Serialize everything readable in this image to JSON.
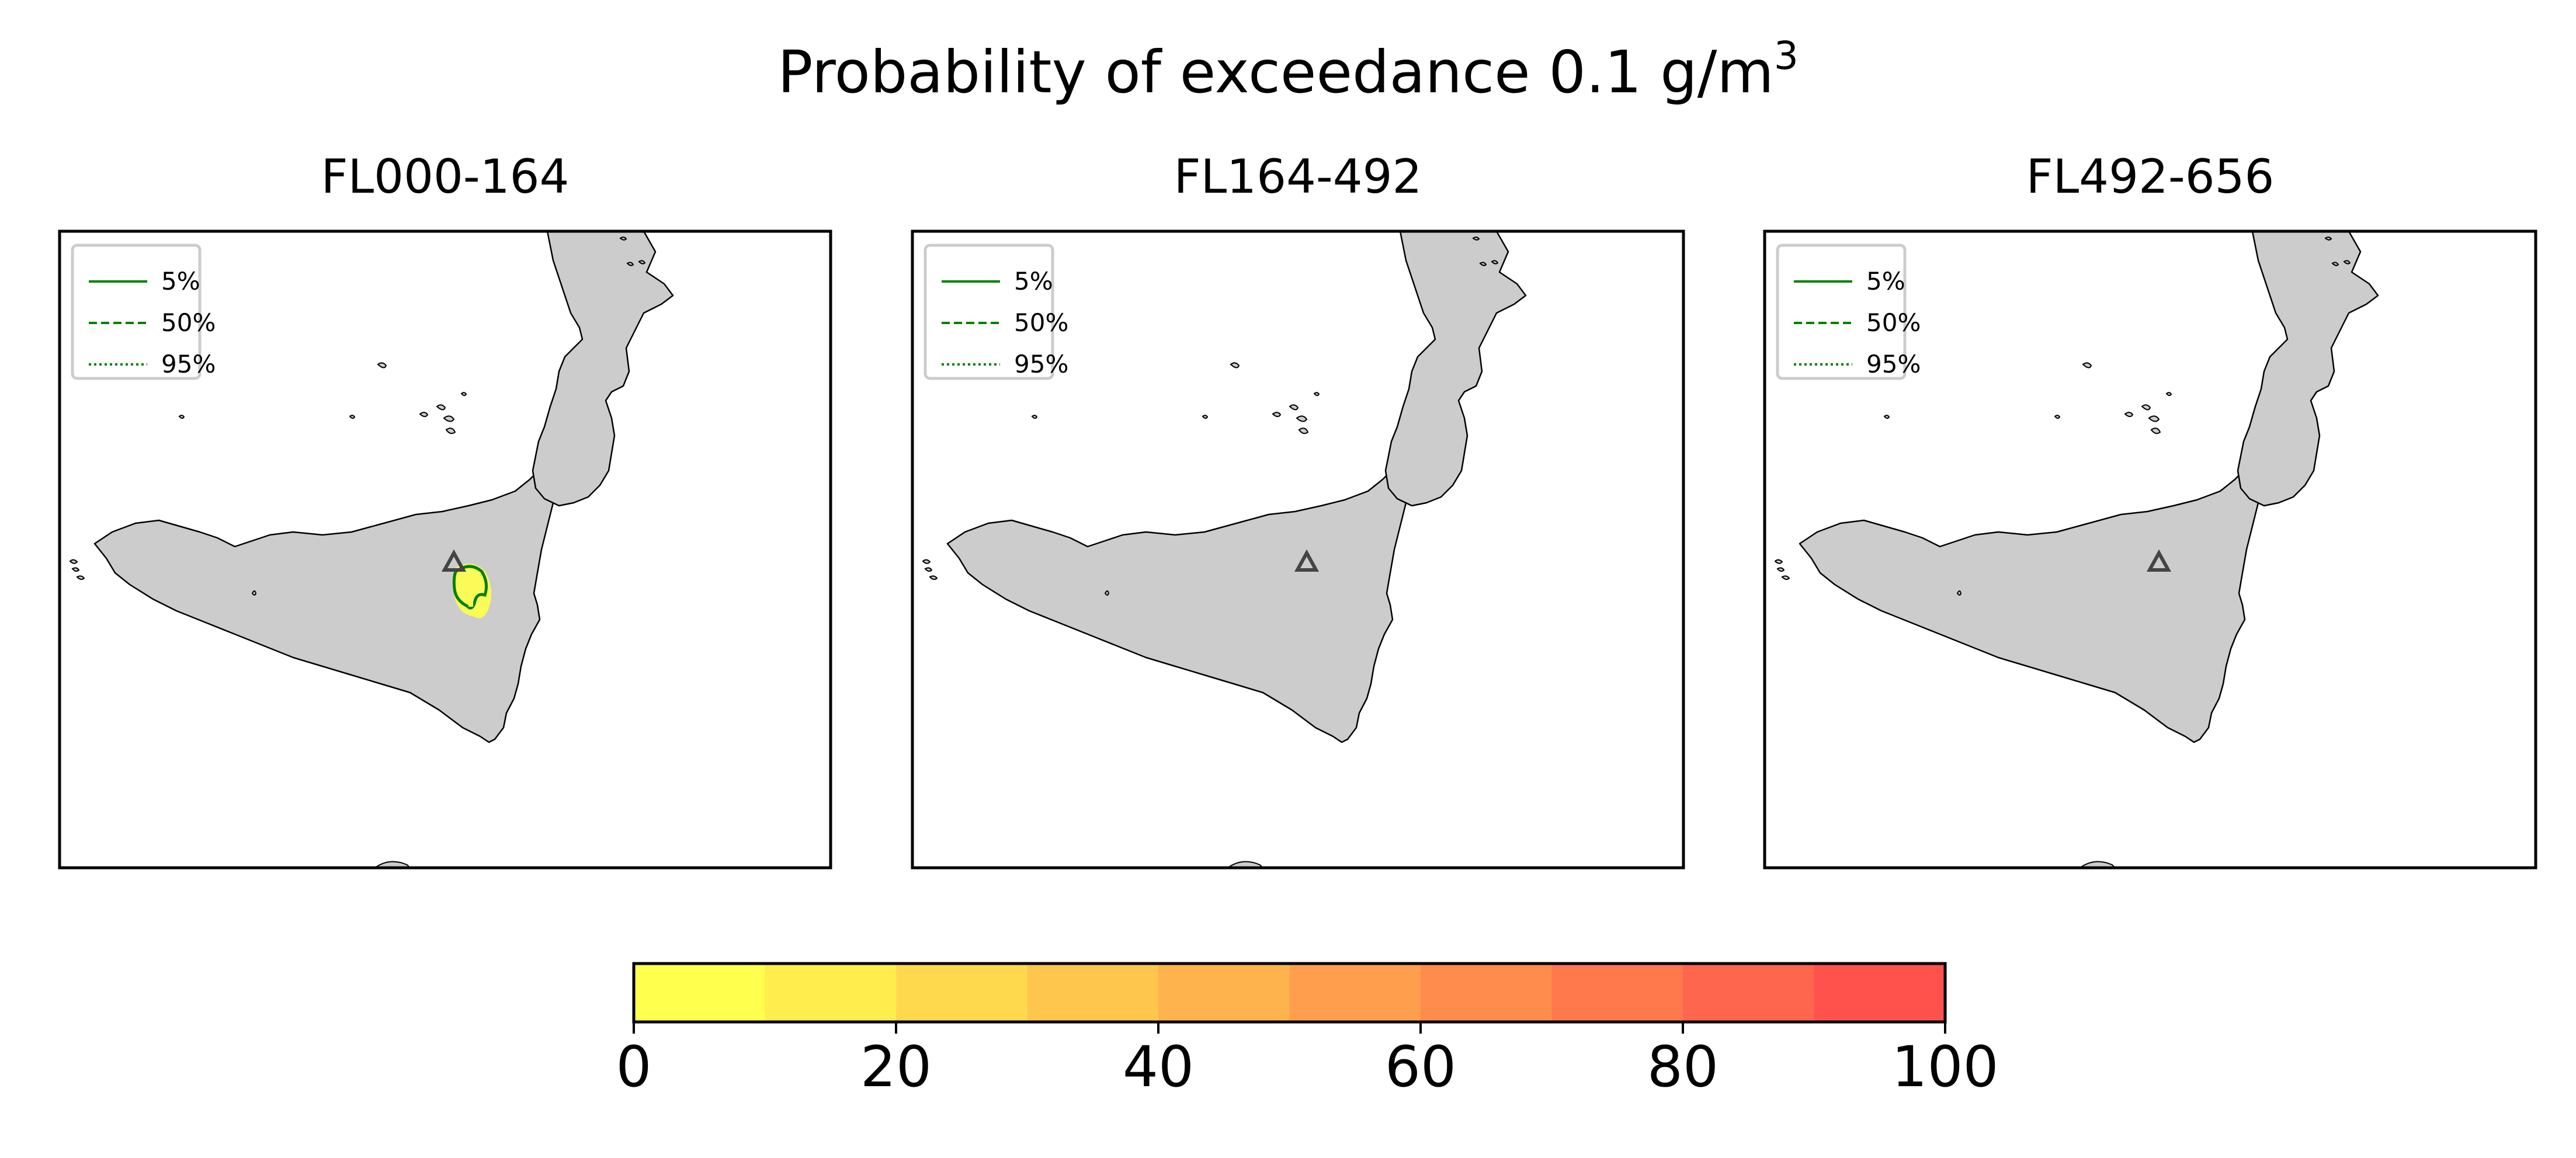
{
  "figure": {
    "title_main": "Probability of exceedance 0.1 g/m",
    "title_sup": "3"
  },
  "panels": [
    {
      "title": "FL000-164",
      "show_plume": true
    },
    {
      "title": "FL164-492",
      "show_plume": false
    },
    {
      "title": "FL492-656",
      "show_plume": false
    }
  ],
  "legend": {
    "items": [
      {
        "label": "5%",
        "style": "solid"
      },
      {
        "label": "50%",
        "style": "dashed"
      },
      {
        "label": "95%",
        "style": "dotted"
      }
    ],
    "color": "#008000"
  },
  "colorbar": {
    "min": 0,
    "max": 100,
    "step": 10,
    "tick_labels": [
      "0",
      "20",
      "40",
      "60",
      "80",
      "100"
    ],
    "colors": [
      "#ffff4d",
      "#ffec4d",
      "#ffd94d",
      "#ffc64d",
      "#ffb34d",
      "#ff9f4d",
      "#ff8c4d",
      "#ff794d",
      "#ff664d",
      "#ff524d"
    ]
  },
  "map_style": {
    "land": "#cccccc",
    "coast": "#000000",
    "volcano_marker": "#444444",
    "plume_fill": "#ffff4d",
    "plume_contour": "#008000"
  }
}
